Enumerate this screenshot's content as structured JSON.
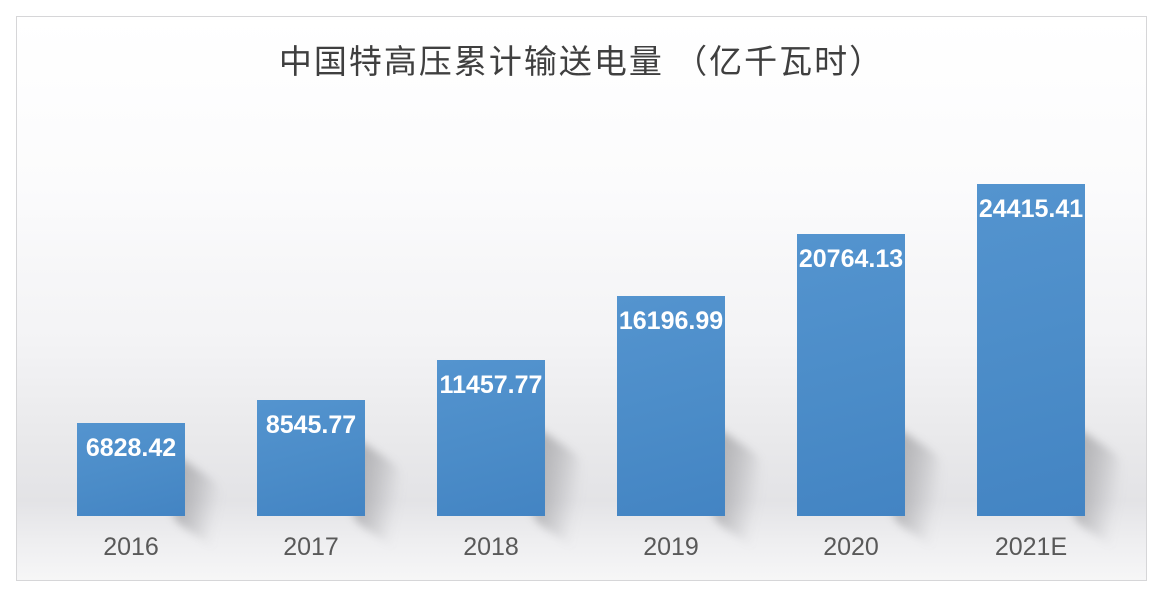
{
  "chart_data": {
    "type": "bar",
    "title": "中国特高压累计输送电量 （亿千瓦时）",
    "categories": [
      "2016",
      "2017",
      "2018",
      "2019",
      "2020",
      "2021E"
    ],
    "values": [
      6828.42,
      8545.77,
      11457.77,
      16196.99,
      20764.13,
      24415.41
    ],
    "value_labels": [
      "6828.42",
      "8545.77",
      "11457.77",
      "16196.99",
      "20764.13",
      "24415.41"
    ],
    "xlabel": "",
    "ylabel": "",
    "ylim": [
      0,
      24415.41
    ],
    "grid": false,
    "legend": false,
    "value_labels_position": "inside-top",
    "colors": {
      "bar": "#4b8cc8",
      "bar_light": "#5494cf",
      "bar_dark": "#4384c3",
      "value_label": "#ffffff",
      "axis_label": "#595959",
      "title": "#3f3f3f",
      "panel_border": "#d6d6d8"
    }
  }
}
